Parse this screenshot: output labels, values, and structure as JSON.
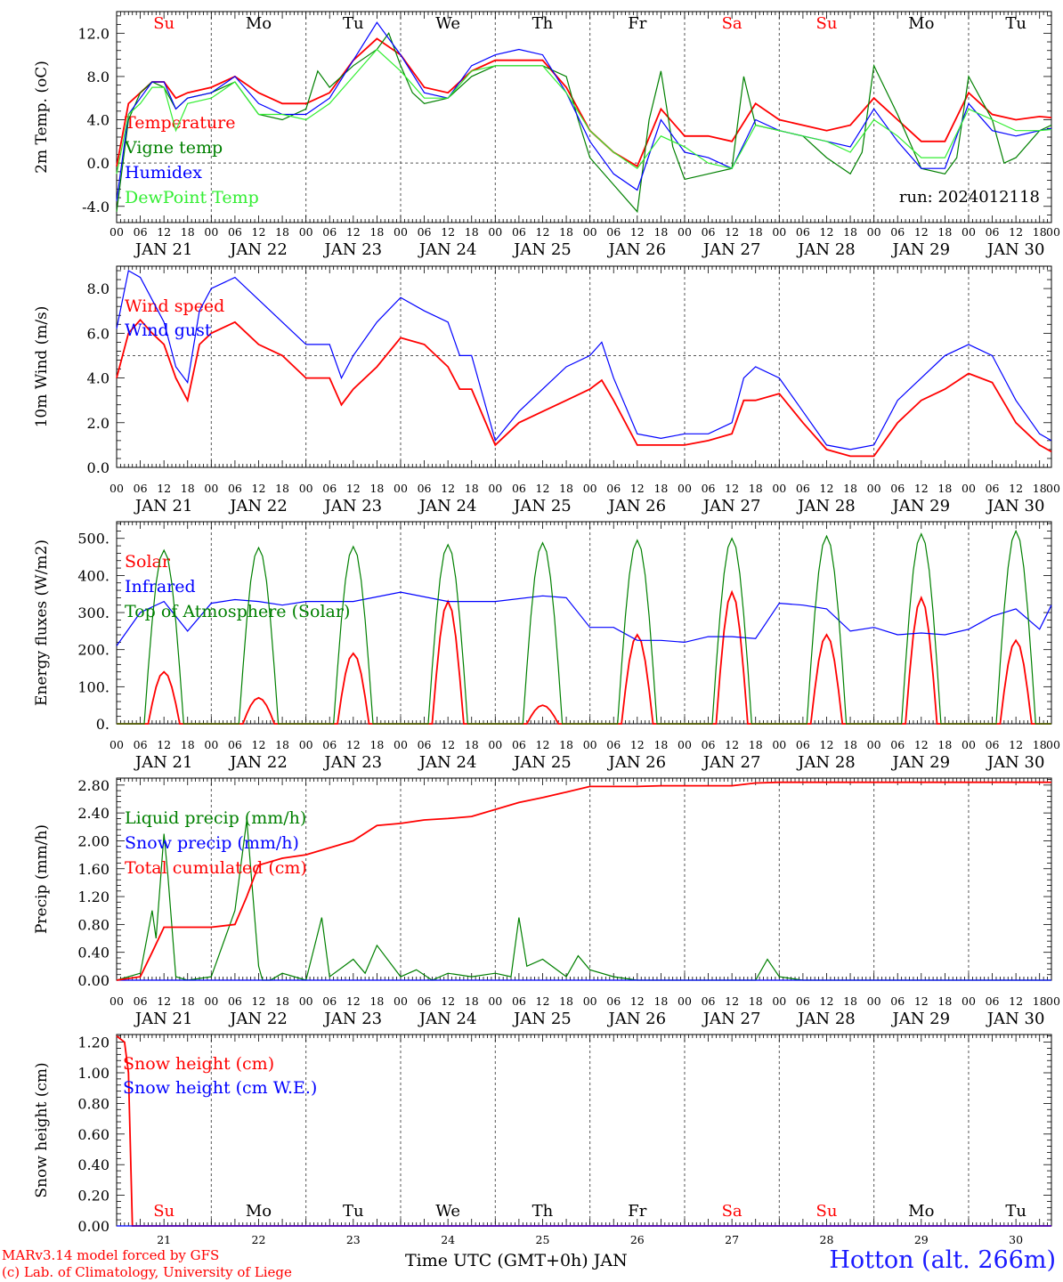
{
  "run_label": "run: 2024012118",
  "day_names": [
    "Su",
    "Mo",
    "Tu",
    "We",
    "Th",
    "Fr",
    "Sa",
    "Su",
    "Mo",
    "Tu"
  ],
  "weekend_color_days": [
    0,
    6,
    7
  ],
  "date_labels": [
    "JAN 21",
    "JAN 22",
    "JAN 23",
    "JAN 24",
    "JAN 25",
    "JAN 26",
    "JAN 27",
    "JAN 28",
    "JAN 29",
    "JAN 30"
  ],
  "hour_ticks": [
    "00",
    "06",
    "12",
    "18"
  ],
  "day_numbers": [
    "21",
    "22",
    "23",
    "24",
    "25",
    "26",
    "27",
    "28",
    "29",
    "30"
  ],
  "footer": {
    "x_axis_title": "Time UTC (GMT+0h) JAN",
    "credit_line1": "MARv3.14 model forced by GFS",
    "credit_line2": "(c) Lab. of Climatology, University of Liege",
    "station": "Hotton (alt. 266m)"
  },
  "colors": {
    "red": "#ff0000",
    "green": "#008000",
    "blue": "#0000ff",
    "lime": "#33ee33"
  },
  "chart_data": [
    {
      "type": "line",
      "ylabel": "2m Temp. (oC)",
      "ylim": [
        -5.5,
        14
      ],
      "yticks": [
        -4,
        0,
        4,
        8,
        12
      ],
      "ytick_labels": [
        "-4.0",
        "0.0",
        "4.0",
        "8.0",
        "12.0"
      ],
      "ref_line": 0,
      "x_unit": "hours since JAN 21 00 UTC",
      "series": [
        {
          "name": "Temperature",
          "color": "#ff0000",
          "x": [
            0,
            3,
            6,
            9,
            12,
            15,
            18,
            24,
            30,
            36,
            42,
            48,
            54,
            60,
            66,
            72,
            78,
            84,
            90,
            96,
            102,
            108,
            114,
            120,
            126,
            132,
            138,
            144,
            150,
            156,
            162,
            168,
            174,
            180,
            186,
            192,
            198,
            204,
            210,
            216,
            222,
            228,
            234,
            237
          ],
          "y": [
            -0.3,
            5.5,
            6.5,
            7.5,
            7.5,
            6.0,
            6.5,
            7.0,
            8.0,
            6.5,
            5.5,
            5.5,
            6.5,
            9.5,
            11.5,
            10.0,
            7.0,
            6.5,
            8.5,
            9.5,
            9.5,
            9.5,
            7.0,
            3.0,
            1.0,
            -0.3,
            5.0,
            2.5,
            2.5,
            2.0,
            5.5,
            4.0,
            3.5,
            3.0,
            3.5,
            6.0,
            4.0,
            2.0,
            2.0,
            6.5,
            4.5,
            4.0,
            4.3,
            4.2
          ]
        },
        {
          "name": "Vigne temp",
          "color": "#008000",
          "x": [
            0,
            3,
            6,
            9,
            12,
            15,
            18,
            24,
            30,
            36,
            42,
            48,
            51,
            54,
            60,
            66,
            69,
            72,
            75,
            78,
            84,
            90,
            96,
            102,
            108,
            114,
            117,
            120,
            126,
            132,
            135,
            138,
            141,
            144,
            150,
            156,
            159,
            162,
            168,
            174,
            180,
            186,
            189,
            192,
            198,
            204,
            210,
            213,
            216,
            222,
            225,
            228,
            234,
            237
          ],
          "y": [
            -4.5,
            4.0,
            6.5,
            7.5,
            7.0,
            5.0,
            6.0,
            6.5,
            7.5,
            4.5,
            4.0,
            5.0,
            8.5,
            7.0,
            9.0,
            10.5,
            12.0,
            9.0,
            6.5,
            5.5,
            6.0,
            8.0,
            9.0,
            9.0,
            9.0,
            8.0,
            4.0,
            0.5,
            -2.0,
            -4.5,
            4.0,
            8.5,
            1.5,
            -1.5,
            -1.0,
            -0.5,
            8.0,
            3.5,
            3.0,
            2.5,
            0.5,
            -1.0,
            1.0,
            9.0,
            4.5,
            -0.5,
            -1.0,
            0.5,
            8.0,
            4.0,
            0.0,
            0.5,
            3.0,
            3.5
          ]
        },
        {
          "name": "Humidex",
          "color": "#0000ff",
          "x": [
            0,
            3,
            6,
            9,
            12,
            15,
            18,
            24,
            30,
            36,
            42,
            48,
            54,
            60,
            66,
            72,
            78,
            84,
            90,
            96,
            102,
            108,
            114,
            120,
            126,
            132,
            138,
            144,
            150,
            156,
            162,
            168,
            174,
            180,
            186,
            192,
            198,
            204,
            210,
            216,
            222,
            228,
            234,
            237
          ],
          "y": [
            -3.5,
            4.5,
            6.0,
            7.5,
            7.5,
            5.0,
            6.0,
            6.5,
            8.0,
            5.5,
            4.5,
            4.5,
            6.0,
            9.5,
            13.0,
            10.0,
            6.5,
            6.0,
            9.0,
            10.0,
            10.5,
            10.0,
            6.5,
            2.0,
            -1.0,
            -2.5,
            4.0,
            1.0,
            0.5,
            -0.5,
            4.0,
            3.0,
            2.5,
            2.0,
            1.5,
            5.0,
            2.0,
            -0.5,
            -0.5,
            5.5,
            3.0,
            2.5,
            3.0,
            3.2
          ]
        },
        {
          "name": "DewPoint Temp",
          "color": "#33ee33",
          "x": [
            0,
            3,
            6,
            9,
            12,
            15,
            18,
            24,
            30,
            36,
            42,
            48,
            54,
            60,
            66,
            72,
            78,
            84,
            90,
            96,
            102,
            108,
            114,
            120,
            126,
            132,
            138,
            144,
            150,
            156,
            162,
            168,
            174,
            180,
            186,
            192,
            198,
            204,
            210,
            216,
            222,
            228,
            234,
            237
          ],
          "y": [
            -1.0,
            4.5,
            5.5,
            7.0,
            7.0,
            3.0,
            5.5,
            6.0,
            7.5,
            4.5,
            4.5,
            4.0,
            5.5,
            8.0,
            10.5,
            8.5,
            6.0,
            6.0,
            8.5,
            9.0,
            9.0,
            9.0,
            6.5,
            3.0,
            1.0,
            -0.5,
            2.5,
            1.5,
            0.0,
            -0.5,
            3.5,
            3.0,
            2.5,
            2.0,
            1.0,
            4.0,
            2.5,
            0.5,
            0.5,
            5.0,
            4.0,
            3.0,
            3.0,
            3.1
          ]
        }
      ]
    },
    {
      "type": "line",
      "ylabel": "10m Wind (m/s)",
      "ylim": [
        0,
        9
      ],
      "yticks": [
        0,
        2,
        4,
        6,
        8
      ],
      "ytick_labels": [
        "0.0",
        "2.0",
        "4.0",
        "6.0",
        "8.0"
      ],
      "ref_line": 5,
      "x_unit": "hours since JAN 21 00 UTC",
      "series": [
        {
          "name": "Wind speed",
          "color": "#ff0000",
          "x": [
            0,
            3,
            6,
            9,
            12,
            15,
            18,
            21,
            24,
            30,
            36,
            42,
            48,
            54,
            57,
            60,
            66,
            72,
            78,
            84,
            87,
            90,
            96,
            102,
            108,
            114,
            120,
            123,
            126,
            132,
            138,
            144,
            150,
            156,
            159,
            162,
            168,
            174,
            180,
            186,
            192,
            198,
            204,
            210,
            216,
            222,
            228,
            234,
            237
          ],
          "y": [
            4.0,
            6.0,
            6.6,
            6.0,
            5.5,
            4.0,
            3.0,
            5.5,
            6.0,
            6.5,
            5.5,
            5.0,
            4.0,
            4.0,
            2.8,
            3.5,
            4.5,
            5.8,
            5.5,
            4.5,
            3.5,
            3.5,
            1.0,
            2.0,
            2.5,
            3.0,
            3.5,
            3.9,
            3.0,
            1.0,
            1.0,
            1.0,
            1.2,
            1.5,
            3.0,
            3.0,
            3.3,
            2.0,
            0.8,
            0.5,
            0.5,
            2.0,
            3.0,
            3.5,
            4.2,
            3.8,
            2.0,
            1.0,
            0.7
          ]
        },
        {
          "name": "Wind gust",
          "color": "#0000ff",
          "x": [
            0,
            3,
            6,
            9,
            12,
            15,
            18,
            21,
            24,
            30,
            36,
            42,
            48,
            54,
            57,
            60,
            66,
            72,
            78,
            84,
            87,
            90,
            96,
            102,
            108,
            114,
            120,
            123,
            126,
            132,
            138,
            144,
            150,
            156,
            159,
            162,
            168,
            174,
            180,
            186,
            192,
            198,
            204,
            210,
            216,
            222,
            228,
            234,
            237
          ],
          "y": [
            6.2,
            8.8,
            8.5,
            7.5,
            6.5,
            4.5,
            3.8,
            7.0,
            8.0,
            8.5,
            7.5,
            6.5,
            5.5,
            5.5,
            4.0,
            5.0,
            6.5,
            7.6,
            7.0,
            6.5,
            5.0,
            5.0,
            1.2,
            2.5,
            3.5,
            4.5,
            5.0,
            5.6,
            4.0,
            1.5,
            1.3,
            1.5,
            1.5,
            2.0,
            4.0,
            4.5,
            4.0,
            2.5,
            1.0,
            0.8,
            1.0,
            3.0,
            4.0,
            5.0,
            5.5,
            5.0,
            3.0,
            1.5,
            1.2
          ]
        }
      ]
    },
    {
      "type": "line",
      "ylabel": "Energy fluxes (W/m2)",
      "ylim": [
        0,
        545
      ],
      "yticks": [
        0,
        100,
        200,
        300,
        400,
        500
      ],
      "ytick_labels": [
        "0.",
        "100.",
        "200.",
        "300.",
        "400.",
        "500."
      ],
      "ref_line": null,
      "x_unit": "hours since JAN 21 00 UTC",
      "series": [
        {
          "name": "Solar",
          "color": "#ff0000",
          "daily_peaks": [
            140,
            70,
            190,
            330,
            50,
            240,
            355,
            240,
            340,
            225
          ],
          "peak_hour": 12
        },
        {
          "name": "Infrared",
          "color": "#0000ff",
          "x": [
            0,
            6,
            12,
            18,
            24,
            30,
            36,
            42,
            48,
            60,
            72,
            84,
            96,
            108,
            114,
            120,
            126,
            132,
            138,
            144,
            150,
            156,
            162,
            168,
            174,
            180,
            186,
            192,
            198,
            204,
            210,
            216,
            222,
            228,
            234,
            237
          ],
          "y": [
            210,
            300,
            330,
            250,
            325,
            335,
            330,
            320,
            330,
            330,
            355,
            330,
            330,
            345,
            340,
            260,
            260,
            225,
            225,
            220,
            235,
            235,
            230,
            325,
            320,
            310,
            250,
            260,
            240,
            245,
            240,
            255,
            290,
            310,
            255,
            320
          ]
        },
        {
          "name": "Top of Atmosphere (Solar)",
          "color": "#008000",
          "daily_peaks": [
            468,
            475,
            478,
            483,
            488,
            495,
            500,
            506,
            512,
            520
          ],
          "peak_hour": 12
        }
      ]
    },
    {
      "type": "line",
      "ylabel": "Precip (mm/h)",
      "ylim": [
        0,
        2.9
      ],
      "yticks": [
        0,
        0.4,
        0.8,
        1.2,
        1.6,
        2.0,
        2.4,
        2.8
      ],
      "ytick_labels": [
        "0.00",
        "0.40",
        "0.80",
        "1.20",
        "1.60",
        "2.00",
        "2.40",
        "2.80"
      ],
      "ref_line": null,
      "x_unit": "hours since JAN 21 00 UTC",
      "series": [
        {
          "name": "Liquid precip (mm/h)",
          "color": "#008000",
          "x": [
            0,
            6,
            9,
            10,
            12,
            13,
            15,
            18,
            24,
            30,
            33,
            36,
            37,
            39,
            42,
            48,
            52,
            54,
            60,
            63,
            66,
            72,
            76,
            80,
            84,
            90,
            96,
            100,
            102,
            104,
            108,
            114,
            117,
            120,
            126,
            132,
            138,
            144,
            150,
            156,
            162,
            165,
            168,
            174,
            180,
            186,
            192,
            198,
            204,
            210,
            216,
            222,
            228,
            234,
            237
          ],
          "y": [
            0,
            0.1,
            1.0,
            0.6,
            2.1,
            1.5,
            0.05,
            0.0,
            0.05,
            1.0,
            2.3,
            0.2,
            0.0,
            0.0,
            0.1,
            0.0,
            0.9,
            0.05,
            0.3,
            0.1,
            0.5,
            0.05,
            0.15,
            0.0,
            0.1,
            0.05,
            0.1,
            0.05,
            0.9,
            0.2,
            0.3,
            0.05,
            0.35,
            0.15,
            0.05,
            0.0,
            0.0,
            0.0,
            0.0,
            0.0,
            0.0,
            0.3,
            0.05,
            0.0,
            0.0,
            0.0,
            0.0,
            0.0,
            0.0,
            0.0,
            0.0,
            0.0,
            0.0,
            0.0,
            0.0
          ]
        },
        {
          "name": "Snow precip (mm/h)",
          "color": "#0000ff",
          "x": [
            0,
            237
          ],
          "y": [
            0,
            0
          ]
        },
        {
          "name": "Total cumulated (cm)",
          "color": "#ff0000",
          "x": [
            0,
            6,
            9,
            12,
            18,
            24,
            30,
            33,
            36,
            42,
            48,
            54,
            60,
            66,
            72,
            78,
            84,
            90,
            96,
            102,
            108,
            114,
            120,
            126,
            132,
            138,
            144,
            150,
            156,
            162,
            168,
            174,
            180,
            186,
            192,
            198,
            204,
            210,
            216,
            222,
            228,
            234,
            237
          ],
          "y": [
            0,
            0.05,
            0.4,
            0.76,
            0.76,
            0.76,
            0.8,
            1.2,
            1.65,
            1.75,
            1.8,
            1.9,
            2.0,
            2.22,
            2.25,
            2.3,
            2.32,
            2.35,
            2.45,
            2.55,
            2.62,
            2.7,
            2.78,
            2.78,
            2.78,
            2.79,
            2.79,
            2.79,
            2.79,
            2.83,
            2.84,
            2.84,
            2.84,
            2.84,
            2.84,
            2.84,
            2.84,
            2.84,
            2.84,
            2.84,
            2.84,
            2.84,
            2.84
          ]
        }
      ]
    },
    {
      "type": "line",
      "ylabel": "Snow height (cm)",
      "ylim": [
        0,
        1.25
      ],
      "yticks": [
        0,
        0.2,
        0.4,
        0.6,
        0.8,
        1.0,
        1.2
      ],
      "ytick_labels": [
        "0.00",
        "0.20",
        "0.40",
        "0.60",
        "0.80",
        "1.00",
        "1.20"
      ],
      "ref_line": null,
      "x_unit": "hours since JAN 21 00 UTC",
      "series": [
        {
          "name": "Snow height (cm)",
          "color": "#ff0000",
          "x": [
            0,
            2,
            3,
            4,
            237
          ],
          "y": [
            1.24,
            1.2,
            1.0,
            0.0,
            0.0
          ]
        },
        {
          "name": "Snow height (cm W.E.)",
          "color": "#0000ff",
          "x": [
            0,
            237
          ],
          "y": [
            0,
            0
          ]
        }
      ]
    }
  ]
}
